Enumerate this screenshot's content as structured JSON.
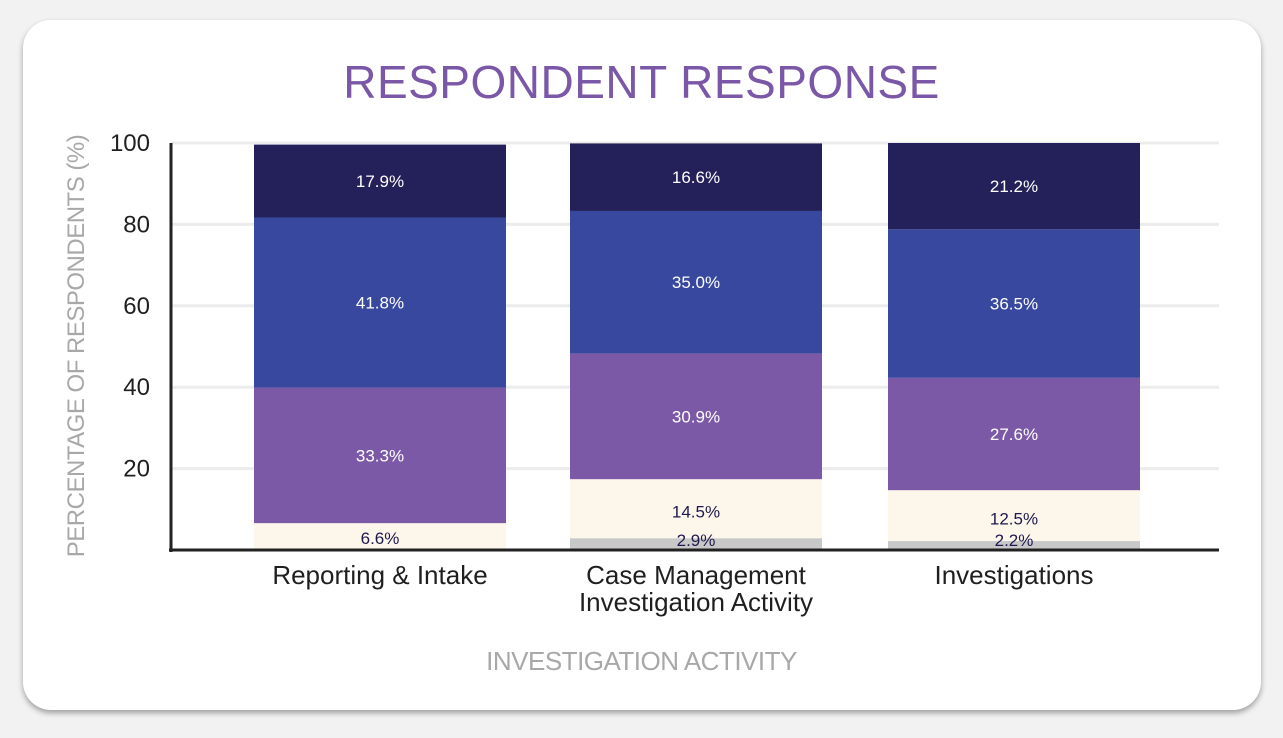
{
  "chart_data": {
    "type": "bar",
    "stacked": true,
    "title": "RESPONDENT RESPONSE",
    "xlabel": "INVESTIGATION ACTIVITY",
    "ylabel": "PERCENTAGE OF RESPONDENTS (%)",
    "ylim": [
      0,
      100
    ],
    "yticks": [
      20,
      40,
      60,
      80,
      100
    ],
    "grid": true,
    "categories": [
      [
        "Reporting & Intake"
      ],
      [
        "Case Management",
        "Investigation Activity"
      ],
      [
        "Investigations"
      ]
    ],
    "series": [
      {
        "color": "#c8c8c8",
        "label_color": "#1e1a4f",
        "values": [
          0,
          2.9,
          2.2
        ],
        "labels": [
          "",
          "2.9%",
          "2.2%"
        ]
      },
      {
        "color": "#fdf6ea",
        "label_color": "#1e1a4f",
        "values": [
          6.6,
          14.5,
          12.5
        ],
        "labels": [
          "6.6%",
          "14.5%",
          "12.5%"
        ]
      },
      {
        "color": "#7b59a6",
        "label_color": "#ffffff",
        "values": [
          33.3,
          30.9,
          27.6
        ],
        "labels": [
          "33.3%",
          "30.9%",
          "27.6%"
        ]
      },
      {
        "color": "#37489e",
        "label_color": "#ffffff",
        "values": [
          41.8,
          35.0,
          36.5
        ],
        "labels": [
          "41.8%",
          "35.0%",
          "36.5%"
        ]
      },
      {
        "color": "#24215a",
        "label_color": "#ffffff",
        "values": [
          17.9,
          16.6,
          21.2
        ],
        "labels": [
          "17.9%",
          "16.6%",
          "21.2%"
        ]
      }
    ]
  }
}
